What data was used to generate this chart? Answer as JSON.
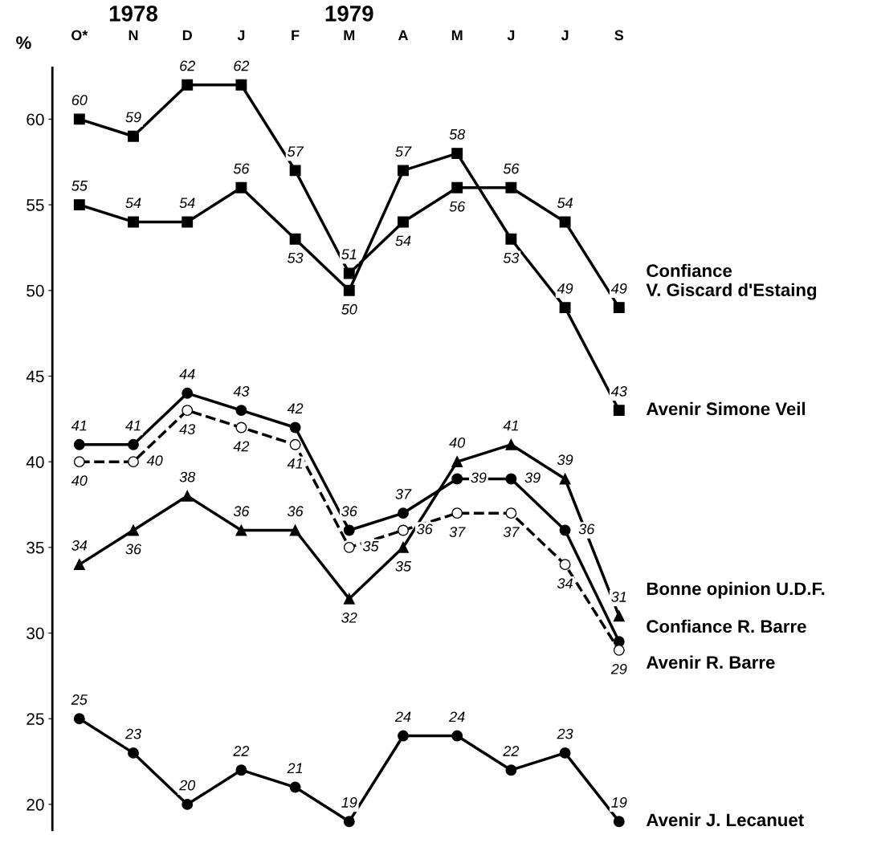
{
  "chart_data": {
    "type": "line",
    "ylabel": "%",
    "categories": [
      "O*",
      "N",
      "D",
      "J",
      "F",
      "M",
      "A",
      "M",
      "J",
      "J",
      "S"
    ],
    "ylim": [
      18.5,
      63
    ],
    "yticks": [
      20,
      25,
      30,
      35,
      40,
      45,
      50,
      55,
      60
    ],
    "grid": false,
    "legend": false,
    "data_labels": true,
    "annotations": [
      "1978",
      "1979"
    ],
    "series": [
      {
        "name": "Confiance\nV. Giscard d'Estaing",
        "color": "#000000",
        "marker": "square",
        "line_style": "solid",
        "values": [
          60,
          59,
          62,
          62,
          57,
          51,
          54,
          56,
          56,
          54,
          49
        ]
      },
      {
        "name": "Avenir Simone Veil",
        "color": "#000000",
        "marker": "square",
        "line_style": "solid",
        "values": [
          55,
          54,
          54,
          56,
          53,
          50,
          57,
          58,
          53,
          49,
          43
        ]
      },
      {
        "name": "Bonne opinion U.D.F.",
        "color": "#000000",
        "marker": "triangle",
        "line_style": "solid",
        "values": [
          34,
          36,
          38,
          36,
          36,
          32,
          35,
          40,
          41,
          39,
          31
        ]
      },
      {
        "name": "Confiance R. Barre",
        "color": "#000000",
        "marker": "circle",
        "line_style": "solid",
        "values": [
          41,
          41,
          44,
          43,
          42,
          36,
          37,
          39,
          39,
          36,
          29.5
        ],
        "value_labels": [
          "41",
          "41",
          "44",
          "43",
          "42",
          "36",
          "37",
          "39",
          "39",
          "36",
          null
        ]
      },
      {
        "name": "Avenir R. Barre",
        "color": "#000000",
        "marker": "circle",
        "line_style": "dashed",
        "values": [
          40,
          40,
          43,
          42,
          41,
          35,
          36,
          37,
          37,
          34,
          29
        ]
      },
      {
        "name": "Avenir J. Lecanuet",
        "color": "#000000",
        "marker": "circle",
        "line_style": "solid",
        "values": [
          25,
          23,
          20,
          22,
          21,
          19,
          24,
          24,
          22,
          23,
          19
        ]
      }
    ]
  }
}
